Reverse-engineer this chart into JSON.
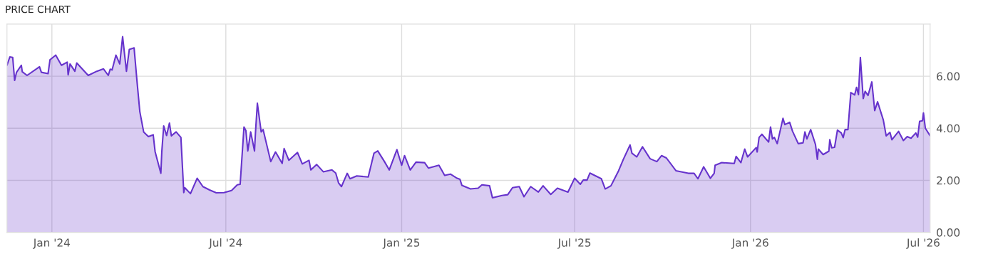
{
  "chart_data": {
    "type": "area",
    "title": "PRICE CHART",
    "x": [
      "2023-11-15",
      "2023-11-18",
      "2023-11-21",
      "2023-11-23",
      "2023-11-25",
      "2023-11-30",
      "2023-12-01",
      "2023-12-06",
      "2023-12-19",
      "2023-12-21",
      "2023-12-28",
      "2023-12-30",
      "2024-01-05",
      "2024-01-11",
      "2024-01-17",
      "2024-01-18",
      "2024-01-20",
      "2024-01-25",
      "2024-01-27",
      "2024-02-08",
      "2024-02-17",
      "2024-02-24",
      "2024-02-29",
      "2024-03-02",
      "2024-03-04",
      "2024-03-08",
      "2024-03-12",
      "2024-03-15",
      "2024-03-19",
      "2024-03-22",
      "2024-03-27",
      "2024-03-30",
      "2024-04-02",
      "2024-04-06",
      "2024-04-11",
      "2024-04-16",
      "2024-04-18",
      "2024-04-24",
      "2024-04-25",
      "2024-04-27",
      "2024-04-30",
      "2024-05-03",
      "2024-05-05",
      "2024-05-10",
      "2024-05-15",
      "2024-05-18",
      "2024-05-19",
      "2024-05-25",
      "2024-06-01",
      "2024-06-07",
      "2024-06-14",
      "2024-06-21",
      "2024-06-29",
      "2024-07-07",
      "2024-07-13",
      "2024-07-16",
      "2024-07-20",
      "2024-07-22",
      "2024-07-24",
      "2024-07-27",
      "2024-07-31",
      "2024-08-01",
      "2024-08-03",
      "2024-08-07",
      "2024-08-09",
      "2024-08-17",
      "2024-08-22",
      "2024-08-29",
      "2024-08-31",
      "2024-09-05",
      "2024-09-14",
      "2024-09-19",
      "2024-09-26",
      "2024-09-28",
      "2024-10-04",
      "2024-10-11",
      "2024-10-20",
      "2024-10-24",
      "2024-10-27",
      "2024-10-30",
      "2024-11-05",
      "2024-11-08",
      "2024-11-15",
      "2024-11-27",
      "2024-12-03",
      "2024-12-07",
      "2024-12-14",
      "2024-12-19",
      "2024-12-27",
      "2025-01-01",
      "2025-01-04",
      "2025-01-10",
      "2025-01-16",
      "2025-01-25",
      "2025-01-29",
      "2025-02-09",
      "2025-02-15",
      "2025-02-21",
      "2025-02-28",
      "2025-03-03",
      "2025-03-05",
      "2025-03-14",
      "2025-03-22",
      "2025-03-26",
      "2025-04-03",
      "2025-04-06",
      "2025-04-16",
      "2025-04-22",
      "2025-04-27",
      "2025-05-04",
      "2025-05-09",
      "2025-05-16",
      "2025-05-24",
      "2025-05-29",
      "2025-06-06",
      "2025-06-13",
      "2025-06-24",
      "2025-07-01",
      "2025-07-07",
      "2025-07-10",
      "2025-07-14",
      "2025-07-17",
      "2025-07-29",
      "2025-08-02",
      "2025-08-08",
      "2025-08-16",
      "2025-08-21",
      "2025-08-28",
      "2025-08-30",
      "2025-09-04",
      "2025-09-10",
      "2025-09-18",
      "2025-09-25",
      "2025-09-30",
      "2025-10-05",
      "2025-10-15",
      "2025-10-28",
      "2025-11-03",
      "2025-11-07",
      "2025-11-13",
      "2025-11-20",
      "2025-11-24",
      "2025-11-25",
      "2025-12-02",
      "2025-12-15",
      "2025-12-17",
      "2025-12-22",
      "2025-12-26",
      "2025-12-29",
      "2026-01-07",
      "2026-01-08",
      "2026-01-10",
      "2026-01-13",
      "2026-01-20",
      "2026-01-22",
      "2026-01-24",
      "2026-01-26",
      "2026-01-29",
      "2026-02-04",
      "2026-02-06",
      "2026-02-11",
      "2026-02-14",
      "2026-02-20",
      "2026-02-25",
      "2026-02-27",
      "2026-03-01",
      "2026-03-05",
      "2026-03-10",
      "2026-03-12",
      "2026-03-13",
      "2026-03-18",
      "2026-03-24",
      "2026-03-25",
      "2026-03-27",
      "2026-03-30",
      "2026-04-02",
      "2026-04-06",
      "2026-04-08",
      "2026-04-10",
      "2026-04-13",
      "2026-04-16",
      "2026-04-20",
      "2026-04-22",
      "2026-04-24",
      "2026-04-26",
      "2026-04-29",
      "2026-05-01",
      "2026-05-04",
      "2026-05-08",
      "2026-05-11",
      "2026-05-14",
      "2026-05-20",
      "2026-05-23",
      "2026-05-27",
      "2026-05-29",
      "2026-06-05",
      "2026-06-10",
      "2026-06-14",
      "2026-06-18",
      "2026-06-23",
      "2026-06-25",
      "2026-06-27",
      "2026-06-30",
      "2026-07-01",
      "2026-07-03",
      "2026-07-08"
    ],
    "series": [
      {
        "color": "#6633cc",
        "values": [
          6.42,
          6.74,
          6.72,
          5.84,
          6.15,
          6.42,
          6.17,
          6.03,
          6.36,
          6.15,
          6.1,
          6.63,
          6.81,
          6.42,
          6.54,
          6.05,
          6.47,
          6.19,
          6.51,
          6.03,
          6.19,
          6.28,
          6.03,
          6.27,
          6.24,
          6.81,
          6.47,
          7.52,
          6.19,
          7.03,
          7.09,
          5.83,
          4.64,
          3.86,
          3.68,
          3.75,
          3.1,
          2.27,
          3.1,
          4.09,
          3.72,
          4.2,
          3.71,
          3.86,
          3.65,
          1.53,
          1.72,
          1.49,
          2.08,
          1.76,
          1.63,
          1.52,
          1.53,
          1.61,
          1.83,
          1.85,
          4.05,
          3.91,
          3.13,
          3.86,
          3.13,
          3.82,
          4.96,
          3.86,
          3.95,
          2.72,
          3.09,
          2.65,
          3.22,
          2.77,
          3.07,
          2.63,
          2.77,
          2.4,
          2.61,
          2.33,
          2.4,
          2.28,
          1.9,
          1.76,
          2.27,
          2.06,
          2.17,
          2.13,
          3.04,
          3.13,
          2.72,
          2.4,
          3.18,
          2.58,
          2.95,
          2.4,
          2.7,
          2.68,
          2.47,
          2.58,
          2.19,
          2.24,
          2.08,
          2.04,
          1.81,
          1.67,
          1.7,
          1.83,
          1.79,
          1.33,
          1.42,
          1.45,
          1.72,
          1.76,
          1.37,
          1.76,
          1.55,
          1.79,
          1.46,
          1.7,
          1.55,
          2.08,
          1.85,
          2.01,
          2.01,
          2.28,
          2.06,
          1.67,
          1.79,
          2.37,
          2.81,
          3.36,
          3.04,
          2.9,
          3.29,
          2.83,
          2.72,
          2.95,
          2.86,
          2.37,
          2.27,
          2.27,
          2.06,
          2.52,
          2.08,
          2.27,
          2.58,
          2.68,
          2.65,
          2.92,
          2.68,
          3.2,
          2.9,
          3.26,
          3.09,
          3.65,
          3.77,
          3.47,
          4.05,
          3.59,
          3.65,
          3.41,
          4.38,
          4.14,
          4.23,
          3.89,
          3.41,
          3.44,
          3.86,
          3.59,
          3.95,
          3.38,
          2.81,
          3.2,
          2.99,
          3.12,
          3.56,
          3.25,
          3.27,
          3.93,
          3.82,
          3.64,
          3.95,
          3.95,
          5.37,
          5.28,
          5.57,
          5.29,
          6.72,
          5.14,
          5.42,
          5.26,
          5.78,
          4.68,
          5.02,
          4.32,
          3.71,
          3.84,
          3.56,
          3.88,
          3.53,
          3.68,
          3.62,
          3.82,
          3.66,
          4.27,
          4.29,
          4.59,
          4.0,
          3.71
        ]
      }
    ],
    "xlim": [
      "2023-11-15",
      "2026-07-08"
    ],
    "xticks": [
      {
        "value": "2024-01-01",
        "label": "Jan '24"
      },
      {
        "value": "2024-07-01",
        "label": "Jul '24"
      },
      {
        "value": "2025-01-01",
        "label": "Jan '25"
      },
      {
        "value": "2025-07-01",
        "label": "Jul '25"
      },
      {
        "value": "2026-01-01",
        "label": "Jan '26"
      },
      {
        "value": "2026-07-01",
        "label": "Jul '26"
      }
    ],
    "ylim": [
      0,
      8
    ],
    "yticks": [
      {
        "value": 0,
        "label": "0.00"
      },
      {
        "value": 2,
        "label": "2.00"
      },
      {
        "value": 4,
        "label": "4.00"
      },
      {
        "value": 6,
        "label": "6.00"
      }
    ],
    "grid": true,
    "legend": false
  }
}
